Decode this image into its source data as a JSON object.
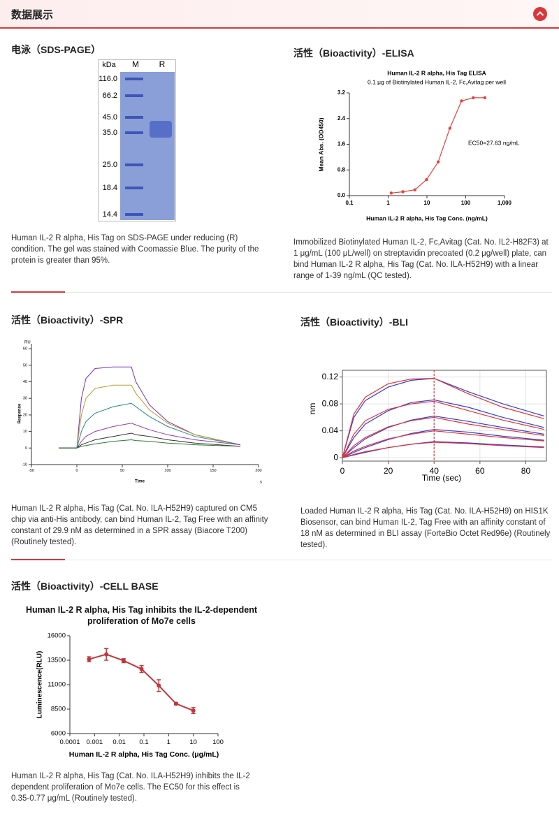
{
  "header": {
    "title": "数据展示"
  },
  "sections": [
    {
      "title": "电泳（SDS-PAGE）",
      "figure": {
        "type": "gel",
        "unit": "kDa",
        "lanes": [
          "M",
          "R"
        ],
        "markers": [
          "116.0",
          "66.2",
          "45.0",
          "35.0",
          "25.0",
          "18.4",
          "14.4"
        ]
      },
      "caption": "Human IL-2 R alpha, His Tag on SDS-PAGE under reducing (R) condition. The gel was stained with Coomassie Blue. The purity of the protein is greater than 95%."
    },
    {
      "title": "活性（Bioactivity）-ELISA",
      "figure": {
        "type": "line",
        "title": "Human IL-2 R alpha, His Tag ELISA",
        "subtitle": "0.1 μg of Biotinylated Human IL-2, Fc,Avitag per well",
        "x_label": "Human IL-2 R alpha, His Tag Conc. (ng/mL)",
        "y_label": "Mean Abs. (OD450)",
        "annotation": "EC50=27.63 ng/mL",
        "xlog": true,
        "xlim": [
          0.1,
          1000
        ],
        "ylim": [
          0,
          3.2
        ],
        "xticks": [
          0.1,
          1,
          10,
          100,
          {
            "value": 1000,
            "label": "1,000"
          }
        ],
        "yticks": [
          {
            "value": 0,
            "label": "0.0"
          },
          0.8,
          1.6,
          2.4,
          3.2
        ],
        "x": [
          1.2,
          2.4,
          4.9,
          9.8,
          19.5,
          39,
          78,
          156,
          312
        ],
        "series": [
          {
            "color": "#e8413c",
            "markers": true,
            "values": [
              0.08,
              0.12,
              0.18,
              0.5,
              1.05,
              2.1,
              2.95,
              3.05,
              3.05
            ]
          }
        ]
      },
      "caption": "Immobilized Biotinylated Human IL-2, Fc,Avitag (Cat. No. IL2-H82F3) at 1 μg/mL (100 μL/well) on streptavidin precoated (0.2 μg/well) plate, can bind Human IL-2 R alpha, His Tag (Cat. No. ILA-H52H9) with a linear range of 1-39 ng/mL (QC tested)."
    },
    {
      "title": "活性（Bioactivity）-SPR",
      "figure": {
        "type": "line",
        "y_unit": "RU",
        "y_label": "Response",
        "x_label": "Time",
        "x_unit": "s",
        "xlim": [
          -50,
          200
        ],
        "ylim": [
          -10,
          63
        ],
        "xticks": [
          -50,
          0,
          50,
          100,
          150,
          200
        ],
        "yticks": [
          -10,
          0,
          10,
          20,
          30,
          40,
          50,
          60
        ],
        "x": [
          -20,
          0,
          5,
          10,
          20,
          40,
          60,
          65,
          80,
          100,
          130,
          180
        ],
        "series": [
          {
            "color": "#7b2fbe",
            "values": [
              0,
              0,
              30,
              42,
              48,
              49,
              49,
              40,
              26,
              16,
              8,
              2
            ]
          },
          {
            "color": "#b89d2a",
            "values": [
              0,
              0,
              20,
              30,
              36,
              38,
              38,
              33,
              23,
              15,
              8,
              2
            ]
          },
          {
            "color": "#1f8a8a",
            "values": [
              0,
              0,
              10,
              16,
              21,
              25,
              27,
              25,
              19,
              13,
              7,
              2
            ]
          },
          {
            "color": "#9b3aa8",
            "values": [
              0,
              0,
              4,
              7,
              10,
              13,
              15,
              14,
              11,
              8,
              5,
              2
            ]
          },
          {
            "color": "#333333",
            "values": [
              0,
              0,
              2,
              3,
              5,
              7,
              9,
              8,
              7,
              5,
              3,
              1
            ]
          },
          {
            "color": "#2a7a2a",
            "values": [
              0,
              0,
              1,
              1.5,
              2.5,
              4,
              5,
              4.5,
              4,
              3,
              2,
              1
            ]
          }
        ]
      },
      "caption": "Human IL-2 R alpha, His Tag (Cat. No. ILA-H52H9) captured on CM5 chip via anti-His antibody, can bind Human IL-2, Tag Free with an affinity constant of 29.9 nM as determined in a SPR assay (Biacore T200) (Routinely tested)."
    },
    {
      "title": "活性（Bioactivity）-BLI",
      "figure": {
        "type": "line",
        "y_label": "nm",
        "x_label": "Time (sec)",
        "grid": true,
        "frame": true,
        "vline": 40,
        "vline_color": "#e83030",
        "xlim": [
          0,
          89
        ],
        "ylim": [
          -0.005,
          0.13
        ],
        "xticks": [
          0,
          20,
          40,
          60,
          80
        ],
        "yticks": [
          0,
          0.04,
          0.08,
          0.12
        ],
        "x": [
          0,
          5,
          10,
          20,
          30,
          40,
          55,
          70,
          88
        ],
        "series": [
          {
            "color": "#2f3fe0",
            "values": [
              0,
              0.06,
              0.085,
              0.105,
              0.115,
              0.118,
              0.098,
              0.08,
              0.062
            ]
          },
          {
            "color": "#e83030",
            "values": [
              0,
              0.065,
              0.09,
              0.11,
              0.117,
              0.118,
              0.095,
              0.075,
              0.058
            ]
          },
          {
            "color": "#2f3fe0",
            "values": [
              0,
              0.03,
              0.05,
              0.07,
              0.082,
              0.086,
              0.075,
              0.06,
              0.045
            ]
          },
          {
            "color": "#e83030",
            "values": [
              0,
              0.035,
              0.055,
              0.072,
              0.08,
              0.084,
              0.07,
              0.056,
              0.042
            ]
          },
          {
            "color": "#2f3fe0",
            "values": [
              0,
              0.015,
              0.028,
              0.045,
              0.056,
              0.062,
              0.054,
              0.045,
              0.035
            ]
          },
          {
            "color": "#e83030",
            "values": [
              0,
              0.018,
              0.03,
              0.046,
              0.055,
              0.06,
              0.05,
              0.042,
              0.033
            ]
          },
          {
            "color": "#2f3fe0",
            "values": [
              0,
              0.008,
              0.015,
              0.027,
              0.036,
              0.042,
              0.038,
              0.032,
              0.026
            ]
          },
          {
            "color": "#e83030",
            "values": [
              0,
              0.01,
              0.017,
              0.028,
              0.035,
              0.04,
              0.035,
              0.03,
              0.025
            ]
          },
          {
            "color": "#2f3fe0",
            "values": [
              0,
              0.004,
              0.008,
              0.015,
              0.02,
              0.024,
              0.022,
              0.019,
              0.016
            ]
          },
          {
            "color": "#e83030",
            "values": [
              0,
              0.005,
              0.009,
              0.015,
              0.02,
              0.023,
              0.021,
              0.018,
              0.015
            ]
          }
        ]
      },
      "caption": "Loaded Human IL-2 R alpha, His Tag (Cat. No. ILA-H52H9) on HIS1K Biosensor, can bind Human IL-2, Tag Free with an affinity constant of 18 nM as determined in BLI assay (ForteBio Octet Red96e) (Routinely tested)."
    },
    {
      "title": "活性（Bioactivity）-CELL BASE",
      "figure": {
        "type": "line",
        "title": "Human IL-2 R alpha, His Tag inhibits the IL-2-dependent proliferation of Mo7e cells",
        "y_label": "Luminescence(RLU)",
        "x_label": "Human IL-2 R alpha, His Tag Conc. (μg/mL)",
        "xlog": true,
        "xlim": [
          0.0001,
          100
        ],
        "ylim": [
          6000,
          16000
        ],
        "xticks": [
          0.0001,
          0.001,
          0.01,
          0.1,
          1,
          10,
          100
        ],
        "yticks": [
          6000,
          8500,
          11000,
          13500,
          16000
        ],
        "x": [
          0.0006,
          0.003,
          0.015,
          0.08,
          0.4,
          2,
          10
        ],
        "series": [
          {
            "color": "#c0373a",
            "markers": true,
            "values": [
              13600,
              14100,
              13450,
              12600,
              10900,
              9050,
              8350
            ],
            "errors": [
              250,
              600,
              200,
              350,
              600,
              100,
              300
            ]
          }
        ]
      },
      "caption": "Human IL-2 R alpha, His Tag (Cat. No. ILA-H52H9) inhibits the IL-2 dependent proliferation of Mo7e cells. The EC50 for this effect is 0.35-0.77 μg/mL (Routinely tested)."
    }
  ]
}
